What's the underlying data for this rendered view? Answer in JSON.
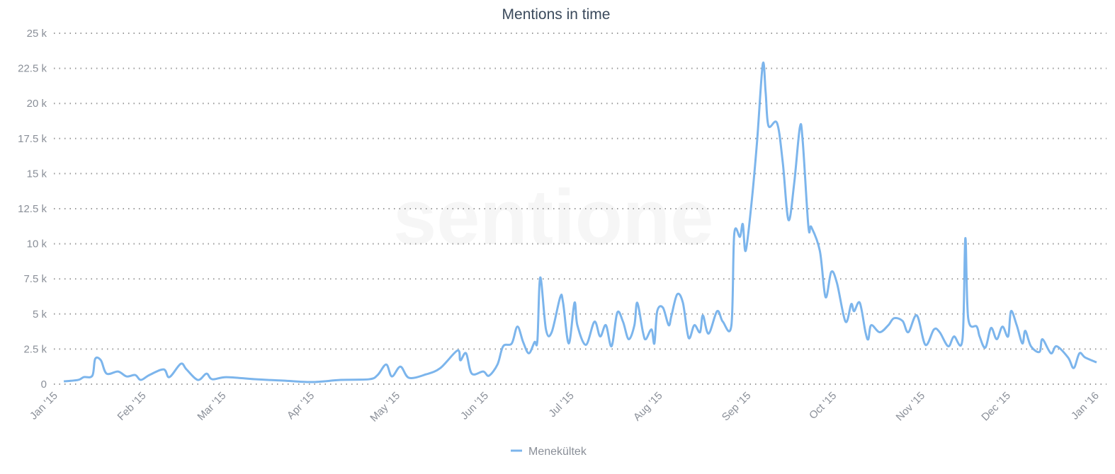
{
  "chart_data": {
    "type": "line",
    "title": "Mentions in time",
    "xlabel": "",
    "ylabel": "",
    "x_unit": "days since Jan 1 2015",
    "xlim": [
      0,
      365
    ],
    "ylim": [
      0,
      25000
    ],
    "grid": true,
    "legend_position": "bottom-center",
    "watermark": "sentione",
    "y_ticks": [
      {
        "value": 0,
        "label": "0"
      },
      {
        "value": 2500,
        "label": "2.5 k"
      },
      {
        "value": 5000,
        "label": "5 k"
      },
      {
        "value": 7500,
        "label": "7.5 k"
      },
      {
        "value": 10000,
        "label": "10 k"
      },
      {
        "value": 12500,
        "label": "12.5 k"
      },
      {
        "value": 15000,
        "label": "15 k"
      },
      {
        "value": 17500,
        "label": "17.5 k"
      },
      {
        "value": 20000,
        "label": "20 k"
      },
      {
        "value": 22500,
        "label": "22.5 k"
      },
      {
        "value": 25000,
        "label": "25 k"
      }
    ],
    "x_ticks": [
      {
        "value": 0,
        "label": "Jan '15"
      },
      {
        "value": 31,
        "label": "Feb '15"
      },
      {
        "value": 59,
        "label": "Mar '15"
      },
      {
        "value": 90,
        "label": "Apr '15"
      },
      {
        "value": 120,
        "label": "May '15"
      },
      {
        "value": 151,
        "label": "Jun '15"
      },
      {
        "value": 181,
        "label": "Jul '15"
      },
      {
        "value": 212,
        "label": "Aug '15"
      },
      {
        "value": 243,
        "label": "Sep '15"
      },
      {
        "value": 273,
        "label": "Oct '15"
      },
      {
        "value": 304,
        "label": "Nov '15"
      },
      {
        "value": 334,
        "label": "Dec '15"
      },
      {
        "value": 365,
        "label": "Jan '16"
      }
    ],
    "series": [
      {
        "name": "Menekültek",
        "color": "#7cb5ec",
        "points": [
          [
            3,
            200
          ],
          [
            8,
            300
          ],
          [
            10,
            500
          ],
          [
            13,
            600
          ],
          [
            14,
            1800
          ],
          [
            16,
            1700
          ],
          [
            18,
            750
          ],
          [
            22,
            900
          ],
          [
            25,
            550
          ],
          [
            28,
            650
          ],
          [
            30,
            300
          ],
          [
            33,
            650
          ],
          [
            38,
            1050
          ],
          [
            40,
            500
          ],
          [
            44,
            1450
          ],
          [
            46,
            1050
          ],
          [
            50,
            300
          ],
          [
            53,
            750
          ],
          [
            55,
            350
          ],
          [
            60,
            500
          ],
          [
            70,
            350
          ],
          [
            80,
            250
          ],
          [
            90,
            150
          ],
          [
            100,
            300
          ],
          [
            110,
            350
          ],
          [
            113,
            650
          ],
          [
            116,
            1400
          ],
          [
            118,
            550
          ],
          [
            121,
            1250
          ],
          [
            124,
            450
          ],
          [
            130,
            700
          ],
          [
            135,
            1150
          ],
          [
            141,
            2400
          ],
          [
            142,
            1700
          ],
          [
            144,
            2200
          ],
          [
            146,
            750
          ],
          [
            150,
            900
          ],
          [
            152,
            600
          ],
          [
            155,
            1400
          ],
          [
            157,
            2700
          ],
          [
            160,
            2900
          ],
          [
            162,
            4100
          ],
          [
            164,
            3000
          ],
          [
            166,
            2200
          ],
          [
            168,
            3000
          ],
          [
            169,
            3100
          ],
          [
            170,
            7600
          ],
          [
            172,
            3900
          ],
          [
            174,
            3700
          ],
          [
            177,
            6200
          ],
          [
            178,
            5800
          ],
          [
            180,
            2900
          ],
          [
            182,
            5800
          ],
          [
            183,
            4200
          ],
          [
            186,
            2800
          ],
          [
            189,
            4450
          ],
          [
            191,
            3400
          ],
          [
            193,
            4200
          ],
          [
            195,
            2700
          ],
          [
            197,
            5100
          ],
          [
            199,
            4450
          ],
          [
            201,
            3200
          ],
          [
            203,
            4200
          ],
          [
            204,
            5800
          ],
          [
            206,
            3700
          ],
          [
            207,
            3200
          ],
          [
            209,
            3900
          ],
          [
            210,
            2900
          ],
          [
            211,
            5200
          ],
          [
            213,
            5450
          ],
          [
            215,
            4200
          ],
          [
            216,
            4900
          ],
          [
            218,
            6400
          ],
          [
            220,
            5800
          ],
          [
            222,
            3300
          ],
          [
            224,
            4200
          ],
          [
            226,
            3700
          ],
          [
            227,
            4900
          ],
          [
            229,
            3600
          ],
          [
            232,
            5200
          ],
          [
            234,
            4450
          ],
          [
            237,
            4200
          ],
          [
            238,
            10700
          ],
          [
            240,
            10500
          ],
          [
            241,
            11400
          ],
          [
            242,
            9500
          ],
          [
            244,
            12800
          ],
          [
            246,
            17300
          ],
          [
            248,
            22800
          ],
          [
            249,
            20800
          ],
          [
            250,
            18400
          ],
          [
            253,
            18600
          ],
          [
            255,
            15800
          ],
          [
            257,
            11700
          ],
          [
            259,
            14300
          ],
          [
            261,
            18300
          ],
          [
            262,
            17300
          ],
          [
            264,
            11200
          ],
          [
            265,
            11200
          ],
          [
            268,
            9500
          ],
          [
            270,
            6200
          ],
          [
            272,
            8000
          ],
          [
            274,
            7200
          ],
          [
            277,
            4450
          ],
          [
            279,
            5700
          ],
          [
            280,
            5200
          ],
          [
            282,
            5800
          ],
          [
            284,
            3700
          ],
          [
            285,
            3200
          ],
          [
            286,
            4200
          ],
          [
            289,
            3700
          ],
          [
            292,
            4200
          ],
          [
            294,
            4700
          ],
          [
            297,
            4500
          ],
          [
            299,
            3700
          ],
          [
            302,
            4900
          ],
          [
            305,
            2800
          ],
          [
            308,
            3900
          ],
          [
            310,
            3700
          ],
          [
            313,
            2700
          ],
          [
            315,
            3400
          ],
          [
            318,
            3200
          ],
          [
            319,
            10400
          ],
          [
            320,
            4700
          ],
          [
            323,
            4100
          ],
          [
            324,
            3400
          ],
          [
            326,
            2600
          ],
          [
            328,
            4000
          ],
          [
            330,
            3200
          ],
          [
            332,
            4100
          ],
          [
            334,
            3400
          ],
          [
            335,
            5200
          ],
          [
            337,
            4200
          ],
          [
            339,
            2900
          ],
          [
            340,
            3800
          ],
          [
            342,
            2700
          ],
          [
            345,
            2300
          ],
          [
            346,
            3200
          ],
          [
            349,
            2200
          ],
          [
            351,
            2700
          ],
          [
            355,
            1900
          ],
          [
            357,
            1150
          ],
          [
            359,
            2200
          ],
          [
            361,
            1900
          ],
          [
            365,
            1550
          ]
        ]
      }
    ]
  }
}
